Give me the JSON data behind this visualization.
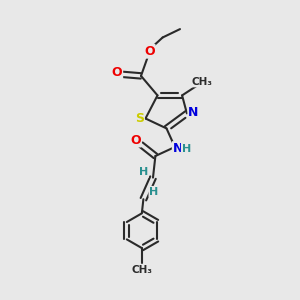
{
  "background_color": "#e8e8e8",
  "bond_color": "#2a2a2a",
  "colors": {
    "O": "#ee0000",
    "N": "#0000dd",
    "S": "#cccc00",
    "C": "#2a2a2a",
    "H": "#2a9090"
  },
  "figsize": [
    3.0,
    3.0
  ],
  "dpi": 100,
  "xlim": [
    0,
    10
  ],
  "ylim": [
    0,
    10
  ]
}
